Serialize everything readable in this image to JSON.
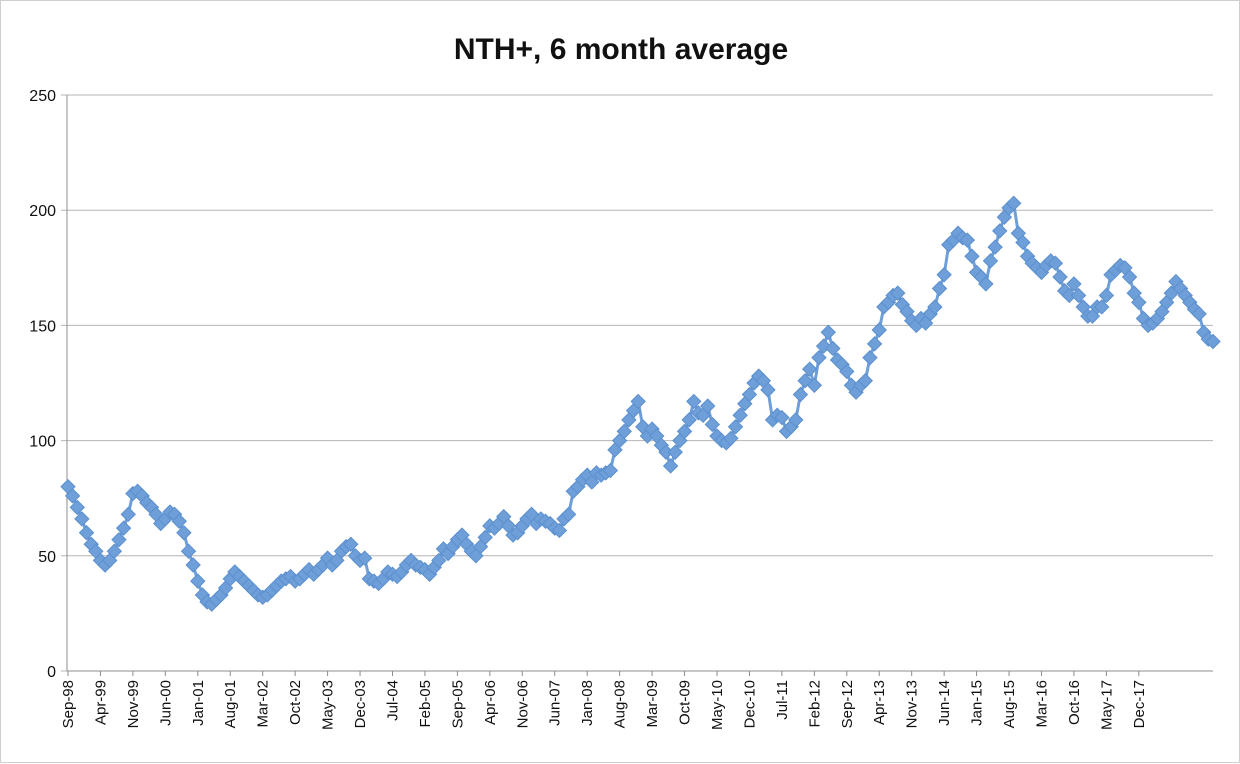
{
  "chart_data": {
    "type": "line",
    "title": "NTH+, 6 month average",
    "xlabel": "",
    "ylabel": "",
    "ylim": [
      0,
      250
    ],
    "yticks": [
      "0",
      "50",
      "100",
      "150",
      "200",
      "250"
    ],
    "xticks": [
      "Sep-98",
      "Apr-99",
      "Nov-99",
      "Jun-00",
      "Jan-01",
      "Aug-01",
      "Mar-02",
      "Oct-02",
      "May-03",
      "Dec-03",
      "Jul-04",
      "Feb-05",
      "Sep-05",
      "Apr-06",
      "Nov-06",
      "Jun-07",
      "Jan-08",
      "Aug-08",
      "Mar-09",
      "Oct-09",
      "May-10",
      "Dec-10",
      "Jul-11",
      "Feb-12",
      "Sep-12",
      "Apr-13",
      "Nov-13",
      "Jun-14",
      "Jan-15",
      "Aug-15",
      "Mar-16",
      "Oct-16",
      "May-17",
      "Dec-17"
    ],
    "grid": true,
    "legend": "none",
    "series_color": "#6f9fd8",
    "series": [
      {
        "values": [
          80,
          76,
          71,
          66,
          60,
          55,
          52,
          48,
          46,
          48,
          52,
          57,
          62,
          68,
          77,
          78,
          76,
          73,
          71,
          68,
          64,
          66,
          69,
          68,
          65,
          60,
          52,
          46,
          39,
          33,
          30,
          29,
          31,
          33,
          36,
          40,
          43,
          41,
          39,
          37,
          35,
          33,
          32,
          33,
          35,
          37,
          39,
          40,
          41,
          39,
          40,
          42,
          44,
          42,
          44,
          46,
          49,
          46,
          48,
          52,
          54,
          55,
          50,
          48,
          49,
          40,
          39,
          38,
          40,
          43,
          42,
          41,
          43,
          46,
          48,
          46,
          45,
          44,
          42,
          45,
          48,
          53,
          51,
          54,
          57,
          59,
          55,
          52,
          50,
          54,
          58,
          63,
          62,
          64,
          67,
          63,
          59,
          60,
          63,
          66,
          68,
          64,
          66,
          65,
          64,
          62,
          61,
          66,
          68,
          78,
          80,
          83,
          85,
          82,
          86,
          85,
          86,
          87,
          96,
          100,
          104,
          109,
          113,
          117,
          106,
          102,
          105,
          102,
          98,
          95,
          89,
          95,
          100,
          104,
          109,
          117,
          112,
          111,
          115,
          107,
          102,
          100,
          99,
          101,
          106,
          111,
          116,
          120,
          125,
          128,
          126,
          122,
          109,
          111,
          110,
          104,
          106,
          109,
          120,
          126,
          131,
          124,
          136,
          141,
          147,
          140,
          135,
          133,
          130,
          124,
          121,
          124,
          126,
          136,
          142,
          148,
          158,
          160,
          163,
          164,
          159,
          156,
          152,
          150,
          153,
          151,
          155,
          158,
          166,
          172,
          185,
          187,
          190,
          188,
          187,
          180,
          173,
          171,
          168,
          178,
          184,
          191,
          197,
          201,
          203,
          190,
          186,
          180,
          177,
          175,
          173,
          176,
          178,
          177,
          171,
          165,
          163,
          168,
          163,
          158,
          154,
          154,
          158,
          158,
          163,
          172,
          174,
          176,
          175,
          171,
          164,
          160,
          153,
          150,
          151,
          153,
          156,
          160,
          164,
          169,
          166,
          163,
          160,
          157,
          155,
          147,
          144,
          143
        ]
      }
    ]
  }
}
